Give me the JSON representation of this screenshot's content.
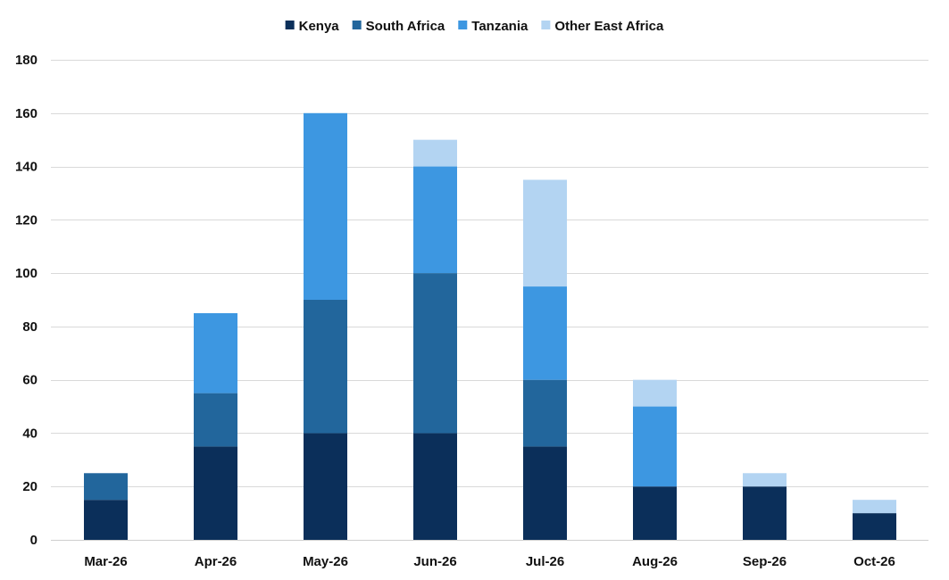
{
  "chart_data": {
    "type": "bar",
    "stacked": true,
    "title": "",
    "xlabel": "",
    "ylabel": "",
    "categories": [
      "Mar-26",
      "Apr-26",
      "May-26",
      "Jun-26",
      "Jul-26",
      "Aug-26",
      "Sep-26",
      "Oct-26"
    ],
    "ylim": [
      0,
      180
    ],
    "yticks": [
      0,
      20,
      40,
      60,
      80,
      100,
      120,
      140,
      160,
      180
    ],
    "grid": true,
    "legend_position": "top-center",
    "series": [
      {
        "name": "Kenya",
        "color": "#0b2f5a",
        "values": [
          15,
          35,
          40,
          40,
          35,
          20,
          20,
          10
        ]
      },
      {
        "name": "South Africa",
        "color": "#22669c",
        "values": [
          10,
          20,
          50,
          60,
          25,
          0,
          0,
          0
        ]
      },
      {
        "name": "Tanzania",
        "color": "#3d97e1",
        "values": [
          0,
          30,
          70,
          40,
          35,
          30,
          0,
          0
        ]
      },
      {
        "name": "Other East Africa",
        "color": "#b3d4f2",
        "values": [
          0,
          0,
          0,
          10,
          40,
          10,
          5,
          5
        ]
      }
    ]
  }
}
